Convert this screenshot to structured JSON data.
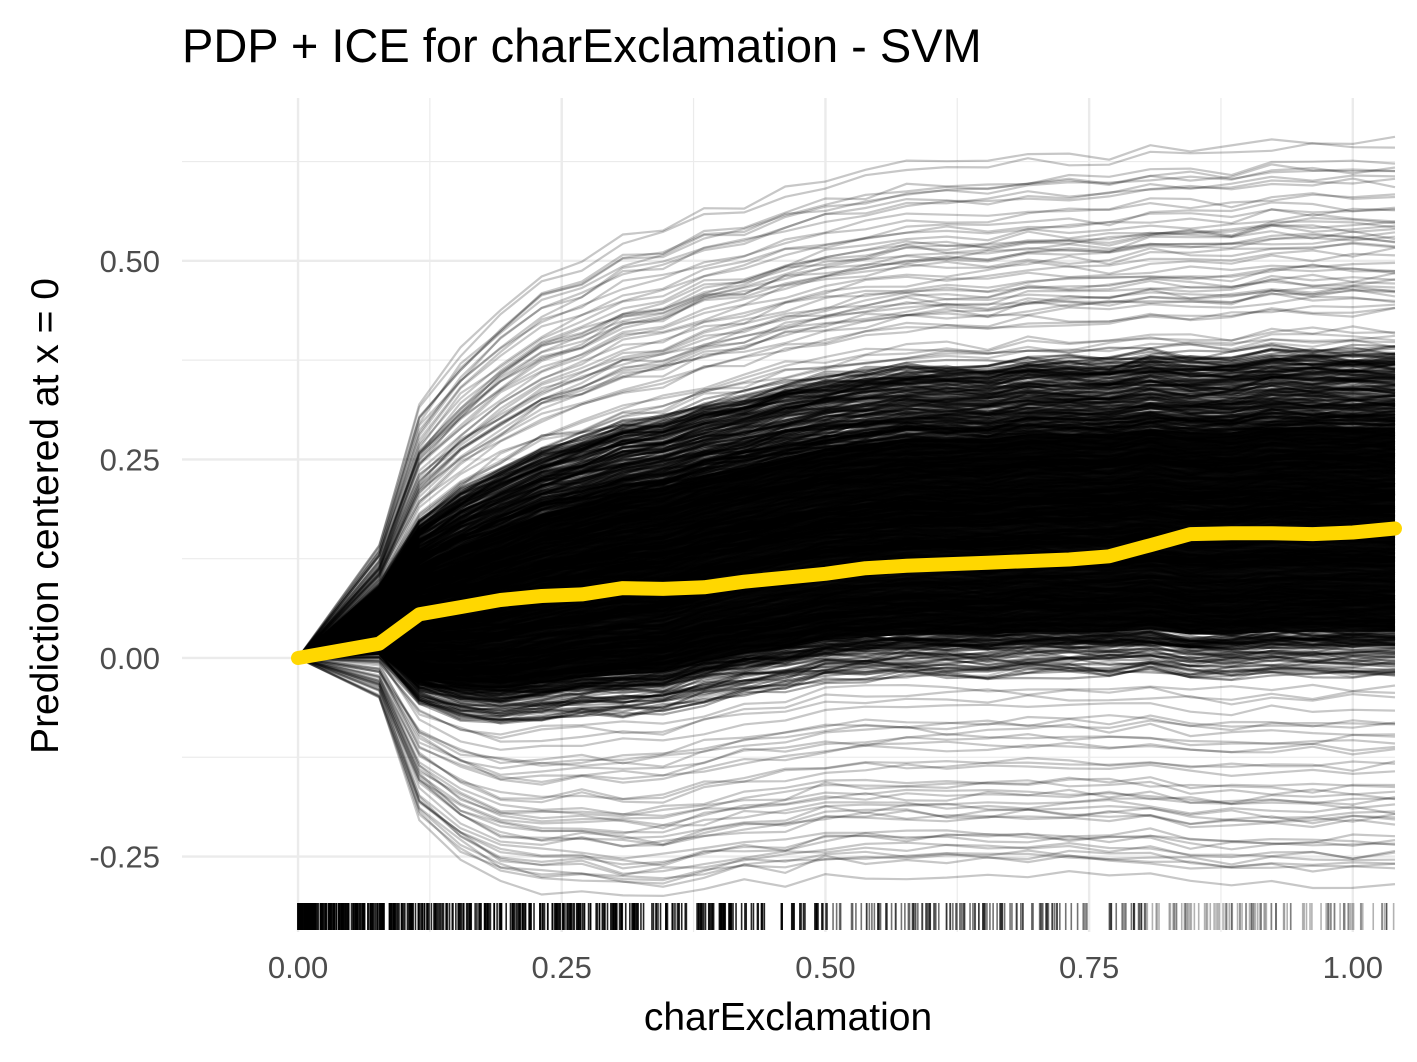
{
  "chart_data": {
    "type": "line",
    "title": "PDP + ICE for charExclamation - SVM",
    "xlabel": "charExclamation",
    "ylabel": "Prediction centered at x = 0",
    "xlim": [
      -0.11,
      1.04
    ],
    "ylim": [
      -0.345,
      0.705
    ],
    "x_ticks": [
      0.0,
      0.25,
      0.5,
      0.75,
      1.0
    ],
    "x_tick_labels": [
      "0.00",
      "0.25",
      "0.50",
      "0.75",
      "1.00"
    ],
    "y_ticks": [
      -0.25,
      0.0,
      0.25,
      0.5
    ],
    "y_tick_labels": [
      "-0.25",
      "0.00",
      "0.25",
      "0.50"
    ],
    "grid": true,
    "rug": true,
    "colors": {
      "pdp": "#FFD700",
      "ice": "#000000",
      "grid": "#ebebeb",
      "tick_text": "#4d4d4d"
    },
    "x": [
      0.0,
      0.077,
      0.115,
      0.154,
      0.192,
      0.231,
      0.269,
      0.308,
      0.346,
      0.385,
      0.423,
      0.462,
      0.5,
      0.538,
      0.577,
      0.615,
      0.654,
      0.692,
      0.731,
      0.769,
      0.808,
      0.846,
      0.885,
      0.923,
      0.962,
      1.0,
      1.04
    ],
    "series": [
      {
        "role": "pdp",
        "values": [
          0.0,
          0.018,
          0.055,
          0.064,
          0.073,
          0.078,
          0.08,
          0.088,
          0.087,
          0.089,
          0.096,
          0.101,
          0.106,
          0.113,
          0.116,
          0.118,
          0.12,
          0.122,
          0.124,
          0.128,
          0.142,
          0.156,
          0.157,
          0.157,
          0.156,
          0.158,
          0.163
        ]
      },
      {
        "role": "ice-upper-envelope",
        "values": [
          0.0,
          0.14,
          0.31,
          0.38,
          0.43,
          0.47,
          0.49,
          0.52,
          0.53,
          0.55,
          0.56,
          0.58,
          0.59,
          0.6,
          0.61,
          0.61,
          0.61,
          0.62,
          0.62,
          0.62,
          0.63,
          0.63,
          0.63,
          0.64,
          0.64,
          0.64,
          0.64
        ]
      },
      {
        "role": "ice-lower-envelope",
        "values": [
          0.0,
          -0.05,
          -0.2,
          -0.25,
          -0.28,
          -0.29,
          -0.29,
          -0.3,
          -0.3,
          -0.29,
          -0.28,
          -0.28,
          -0.27,
          -0.27,
          -0.27,
          -0.27,
          -0.27,
          -0.27,
          -0.27,
          -0.27,
          -0.27,
          -0.28,
          -0.28,
          -0.28,
          -0.28,
          -0.28,
          -0.28
        ]
      }
    ]
  }
}
